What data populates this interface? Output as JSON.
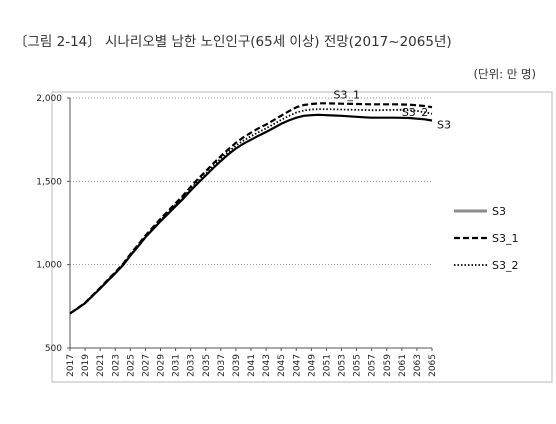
{
  "figure_title": "〔그림 2-14〕 시나리오별 남한 노인인구(65세 이상) 전망(2017~2065년)",
  "unit_label": "(단위: 만 명)",
  "chart_data": {
    "type": "line",
    "title": "〔그림 2-14〕 시나리오별 남한 노인인구(65세 이상) 전망(2017~2065년)",
    "unit": "(단위: 만 명)",
    "x": [
      2017,
      2018,
      2019,
      2020,
      2021,
      2022,
      2023,
      2024,
      2025,
      2026,
      2027,
      2028,
      2029,
      2030,
      2031,
      2032,
      2033,
      2034,
      2035,
      2036,
      2037,
      2038,
      2039,
      2040,
      2041,
      2042,
      2043,
      2044,
      2045,
      2046,
      2047,
      2048,
      2049,
      2050,
      2051,
      2052,
      2053,
      2054,
      2055,
      2056,
      2057,
      2058,
      2059,
      2060,
      2061,
      2062,
      2063,
      2064,
      2065
    ],
    "x_ticks": [
      2017,
      2019,
      2021,
      2023,
      2025,
      2027,
      2029,
      2031,
      2033,
      2035,
      2037,
      2039,
      2041,
      2043,
      2045,
      2047,
      2049,
      2051,
      2053,
      2055,
      2057,
      2059,
      2061,
      2063,
      2065
    ],
    "ylim": [
      500,
      2000
    ],
    "y_ticks": [
      500,
      1000,
      1500,
      2000
    ],
    "y_tick_labels": [
      "500",
      "1,000",
      "1,500",
      "2,000"
    ],
    "grid": "horizontal dotted",
    "legend_position": "right",
    "series": [
      {
        "name": "S3",
        "style": "solid",
        "color": "#000000",
        "values": [
          707,
          737,
          769,
          813,
          857,
          903,
          948,
          995,
          1054,
          1108,
          1164,
          1212,
          1260,
          1305,
          1351,
          1395,
          1445,
          1491,
          1535,
          1580,
          1622,
          1662,
          1697,
          1726,
          1750,
          1774,
          1796,
          1820,
          1845,
          1865,
          1882,
          1893,
          1897,
          1899,
          1897,
          1895,
          1893,
          1890,
          1887,
          1884,
          1882,
          1882,
          1882,
          1882,
          1881,
          1880,
          1876,
          1872,
          1865
        ]
      },
      {
        "name": "S3_1",
        "style": "dashed",
        "color": "#000000",
        "values": [
          707,
          738,
          771,
          816,
          861,
          908,
          955,
          1003,
          1062,
          1118,
          1175,
          1225,
          1275,
          1321,
          1369,
          1415,
          1467,
          1515,
          1561,
          1607,
          1651,
          1693,
          1731,
          1765,
          1792,
          1818,
          1841,
          1867,
          1894,
          1920,
          1944,
          1958,
          1964,
          1968,
          1968,
          1967,
          1966,
          1965,
          1964,
          1963,
          1962,
          1962,
          1962,
          1962,
          1961,
          1960,
          1956,
          1952,
          1945
        ]
      },
      {
        "name": "S3_2",
        "style": "dotted",
        "color": "#000000",
        "values": [
          707,
          737,
          770,
          814,
          859,
          906,
          952,
          999,
          1058,
          1113,
          1169,
          1218,
          1267,
          1313,
          1360,
          1404,
          1455,
          1503,
          1547,
          1593,
          1637,
          1677,
          1714,
          1745,
          1771,
          1795,
          1818,
          1843,
          1869,
          1892,
          1913,
          1925,
          1931,
          1933,
          1933,
          1932,
          1931,
          1930,
          1929,
          1928,
          1927,
          1927,
          1928,
          1929,
          1929,
          1927,
          1922,
          1915,
          1905
        ]
      }
    ]
  }
}
